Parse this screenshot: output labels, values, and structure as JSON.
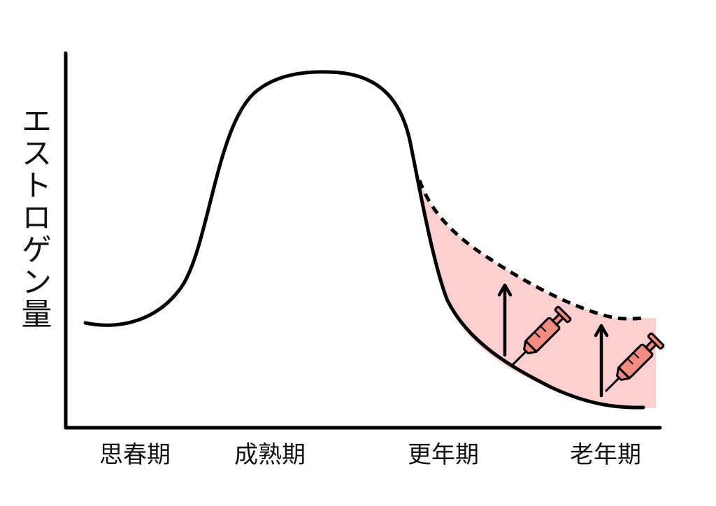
{
  "axes": {
    "ylabel": "エストロゲン量"
  },
  "stages": [
    {
      "id": "puberty",
      "label": "思春期"
    },
    {
      "id": "maturity",
      "label": "成熟期"
    },
    {
      "id": "menopause",
      "label": "更年期"
    },
    {
      "id": "senescence",
      "label": "老年期"
    }
  ],
  "series": {
    "natural": {
      "style": "solid",
      "color": "#000000"
    },
    "with_hrt": {
      "style": "dashed",
      "color": "#000000"
    }
  },
  "hrt_region": {
    "fill": "#fcd0d0"
  },
  "icons": [
    {
      "name": "up-arrow-icon",
      "color": "#000000"
    },
    {
      "name": "syringe-icon",
      "color": "#f28b82"
    },
    {
      "name": "up-arrow-icon",
      "color": "#000000"
    },
    {
      "name": "syringe-icon",
      "color": "#f28b82"
    }
  ]
}
